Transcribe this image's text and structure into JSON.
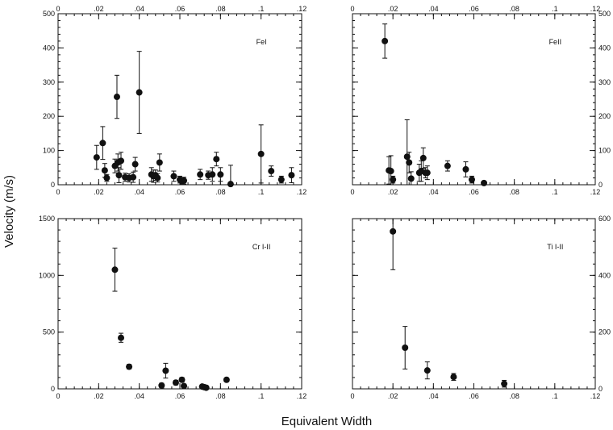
{
  "figure": {
    "ylabel": "Velocity (m/s)",
    "xlabel": "Equivalent Width"
  },
  "chart_data": [
    {
      "type": "scatter",
      "title": "FeI",
      "xlim": [
        0,
        0.12
      ],
      "ylim": [
        0,
        500
      ],
      "x_ticks": [
        0,
        0.02,
        0.04,
        0.06,
        0.08,
        0.1,
        0.12
      ],
      "x_tick_labels": [
        "0",
        ".02",
        ".04",
        ".06",
        ".08",
        ".1",
        ".12"
      ],
      "y_ticks": [
        0,
        100,
        200,
        300,
        400,
        500
      ],
      "y_tick_labels": [
        "0",
        "100",
        "200",
        "300",
        "400",
        "500"
      ],
      "tick_labels_bottom": true,
      "tick_labels_top": true,
      "tick_labels_left": true,
      "tick_labels_right": false,
      "series": [
        {
          "points": [
            {
              "x": 0.019,
              "y": 80,
              "err": 35
            },
            {
              "x": 0.022,
              "y": 122,
              "err": 48
            },
            {
              "x": 0.023,
              "y": 42,
              "err": 20
            },
            {
              "x": 0.024,
              "y": 20,
              "err": 10
            },
            {
              "x": 0.028,
              "y": 55,
              "err": 20
            },
            {
              "x": 0.029,
              "y": 257,
              "err": 63
            },
            {
              "x": 0.0295,
              "y": 65,
              "err": 25
            },
            {
              "x": 0.03,
              "y": 28,
              "err": 22
            },
            {
              "x": 0.031,
              "y": 70,
              "err": 25
            },
            {
              "x": 0.033,
              "y": 22,
              "err": 12
            },
            {
              "x": 0.035,
              "y": 20,
              "err": 12
            },
            {
              "x": 0.037,
              "y": 22,
              "err": 15
            },
            {
              "x": 0.038,
              "y": 60,
              "err": 20
            },
            {
              "x": 0.04,
              "y": 270,
              "err": 120
            },
            {
              "x": 0.046,
              "y": 30,
              "err": 20
            },
            {
              "x": 0.047,
              "y": 25,
              "err": 18
            },
            {
              "x": 0.048,
              "y": 28,
              "err": 15
            },
            {
              "x": 0.049,
              "y": 20,
              "err": 12
            },
            {
              "x": 0.05,
              "y": 65,
              "err": 25
            },
            {
              "x": 0.057,
              "y": 25,
              "err": 15
            },
            {
              "x": 0.06,
              "y": 15,
              "err": 10
            },
            {
              "x": 0.061,
              "y": 10,
              "err": 8
            },
            {
              "x": 0.062,
              "y": 12,
              "err": 10
            },
            {
              "x": 0.07,
              "y": 30,
              "err": 15
            },
            {
              "x": 0.074,
              "y": 28,
              "err": 12
            },
            {
              "x": 0.076,
              "y": 30,
              "err": 20
            },
            {
              "x": 0.078,
              "y": 75,
              "err": 20
            },
            {
              "x": 0.08,
              "y": 30,
              "err": 20
            },
            {
              "x": 0.085,
              "y": 2,
              "err": 55
            },
            {
              "x": 0.1,
              "y": 90,
              "err": 85
            },
            {
              "x": 0.105,
              "y": 40,
              "err": 15
            },
            {
              "x": 0.11,
              "y": 15,
              "err": 10
            },
            {
              "x": 0.115,
              "y": 28,
              "err": 22
            }
          ]
        }
      ]
    },
    {
      "type": "scatter",
      "title": "FeII",
      "xlim": [
        0,
        0.12
      ],
      "ylim": [
        0,
        500
      ],
      "x_ticks": [
        0,
        0.02,
        0.04,
        0.06,
        0.08,
        0.1,
        0.12
      ],
      "x_tick_labels": [
        "0",
        ".02",
        ".04",
        ".06",
        ".08",
        ".1",
        ".12"
      ],
      "y_ticks": [
        0,
        100,
        200,
        300,
        400,
        500
      ],
      "y_tick_labels": [
        "0",
        "100",
        "200",
        "300",
        "400",
        "500"
      ],
      "tick_labels_bottom": true,
      "tick_labels_top": true,
      "tick_labels_left": false,
      "tick_labels_right": true,
      "series": [
        {
          "points": [
            {
              "x": 0.016,
              "y": 420,
              "err": 50
            },
            {
              "x": 0.018,
              "y": 42,
              "err": 40
            },
            {
              "x": 0.019,
              "y": 40,
              "err": 45
            },
            {
              "x": 0.02,
              "y": 15,
              "err": 10
            },
            {
              "x": 0.027,
              "y": 82,
              "err": 108
            },
            {
              "x": 0.028,
              "y": 65,
              "err": 30
            },
            {
              "x": 0.029,
              "y": 18,
              "err": 20
            },
            {
              "x": 0.033,
              "y": 35,
              "err": 25
            },
            {
              "x": 0.034,
              "y": 40,
              "err": 30
            },
            {
              "x": 0.035,
              "y": 78,
              "err": 30
            },
            {
              "x": 0.036,
              "y": 35,
              "err": 15
            },
            {
              "x": 0.037,
              "y": 35,
              "err": 20
            },
            {
              "x": 0.047,
              "y": 55,
              "err": 15
            },
            {
              "x": 0.056,
              "y": 45,
              "err": 22
            },
            {
              "x": 0.059,
              "y": 15,
              "err": 10
            },
            {
              "x": 0.065,
              "y": 5,
              "err": 5
            }
          ]
        }
      ]
    },
    {
      "type": "scatter",
      "title": "Cr I-II",
      "xlim": [
        0,
        0.12
      ],
      "ylim": [
        0,
        1500
      ],
      "x_ticks": [
        0,
        0.02,
        0.04,
        0.06,
        0.08,
        0.1,
        0.12
      ],
      "x_tick_labels": [
        "0",
        ".02",
        ".04",
        ".06",
        ".08",
        ".1",
        ".12"
      ],
      "y_ticks": [
        0,
        500,
        1000,
        1500
      ],
      "y_tick_labels": [
        "0",
        "500",
        "1000",
        "1500"
      ],
      "tick_labels_bottom": true,
      "tick_labels_top": false,
      "tick_labels_left": true,
      "tick_labels_right": false,
      "series": [
        {
          "points": [
            {
              "x": 0.028,
              "y": 1050,
              "err": 190
            },
            {
              "x": 0.031,
              "y": 450,
              "err": 40
            },
            {
              "x": 0.035,
              "y": 195,
              "err": 20
            },
            {
              "x": 0.051,
              "y": 30,
              "err": 20
            },
            {
              "x": 0.053,
              "y": 160,
              "err": 65
            },
            {
              "x": 0.058,
              "y": 55,
              "err": 20
            },
            {
              "x": 0.061,
              "y": 80,
              "err": 20
            },
            {
              "x": 0.062,
              "y": 25,
              "err": 15
            },
            {
              "x": 0.071,
              "y": 20,
              "err": 15
            },
            {
              "x": 0.072,
              "y": 15,
              "err": 10
            },
            {
              "x": 0.073,
              "y": 10,
              "err": 8
            },
            {
              "x": 0.083,
              "y": 80,
              "err": 15
            }
          ]
        }
      ]
    },
    {
      "type": "scatter",
      "title": "Ti I-II",
      "xlim": [
        0,
        0.12
      ],
      "ylim": [
        0,
        600
      ],
      "x_ticks": [
        0,
        0.02,
        0.04,
        0.06,
        0.08,
        0.1,
        0.12
      ],
      "x_tick_labels": [
        "0",
        ".02",
        ".04",
        ".06",
        ".08",
        ".1",
        ".12"
      ],
      "y_ticks": [
        0,
        200,
        400,
        600
      ],
      "y_tick_labels": [
        "0",
        "200",
        "400",
        "600"
      ],
      "tick_labels_bottom": true,
      "tick_labels_top": false,
      "tick_labels_left": false,
      "tick_labels_right": true,
      "series": [
        {
          "points": [
            {
              "x": 0.02,
              "y": 555,
              "err": 135
            },
            {
              "x": 0.026,
              "y": 145,
              "err": 75
            },
            {
              "x": 0.037,
              "y": 65,
              "err": 30
            },
            {
              "x": 0.05,
              "y": 42,
              "err": 12
            },
            {
              "x": 0.075,
              "y": 18,
              "err": 12
            }
          ]
        }
      ]
    }
  ]
}
